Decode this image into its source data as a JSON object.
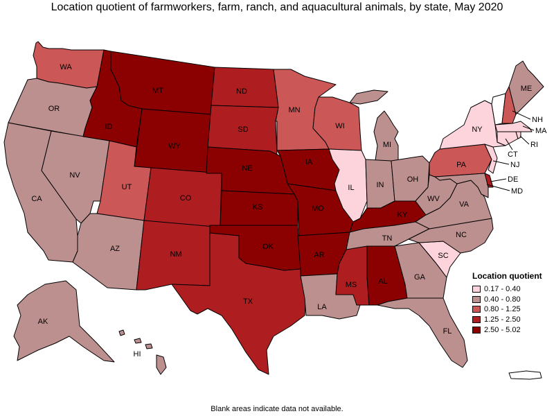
{
  "title": "Location quotient of farmworkers, farm, ranch, and aquacultural animals, by state, May 2020",
  "footnote": "Blank areas indicate data not available.",
  "legend": {
    "title": "Location quotient",
    "items": [
      {
        "label": "0.17 - 0.40",
        "color": "#fdd3dc"
      },
      {
        "label": "0.40 - 0.80",
        "color": "#bd9090"
      },
      {
        "label": "0.80 - 1.25",
        "color": "#cb5757"
      },
      {
        "label": "1.25 - 2.50",
        "color": "#ae1e21"
      },
      {
        "label": "2.50 - 5.02",
        "color": "#8b0000"
      }
    ]
  },
  "states": {
    "WA": 2,
    "OR": 1,
    "CA": 1,
    "NV": 1,
    "ID": 4,
    "MT": 4,
    "WY": 4,
    "UT": 2,
    "AZ": 1,
    "CO": 3,
    "NM": 3,
    "ND": 3,
    "SD": 3,
    "NE": 4,
    "KS": 4,
    "OK": 4,
    "TX": 3,
    "MN": 2,
    "IA": 4,
    "MO": 4,
    "AR": 4,
    "LA": 1,
    "WI": 2,
    "IL": 0,
    "MI": 1,
    "IN": 1,
    "OH": 1,
    "KY": 4,
    "TN": 1,
    "MS": 3,
    "AL": 4,
    "GA": 1,
    "FL": 1,
    "SC": 0,
    "NC": 1,
    "VA": 1,
    "WV": 1,
    "PA": 2,
    "NY": 0,
    "VT": -1,
    "NH": 2,
    "ME": 1,
    "MA": 0,
    "RI": 0,
    "CT": 0,
    "NJ": 0,
    "DE": 3,
    "MD": 1,
    "AK": 1,
    "HI": 1,
    "PR": -1
  }
}
